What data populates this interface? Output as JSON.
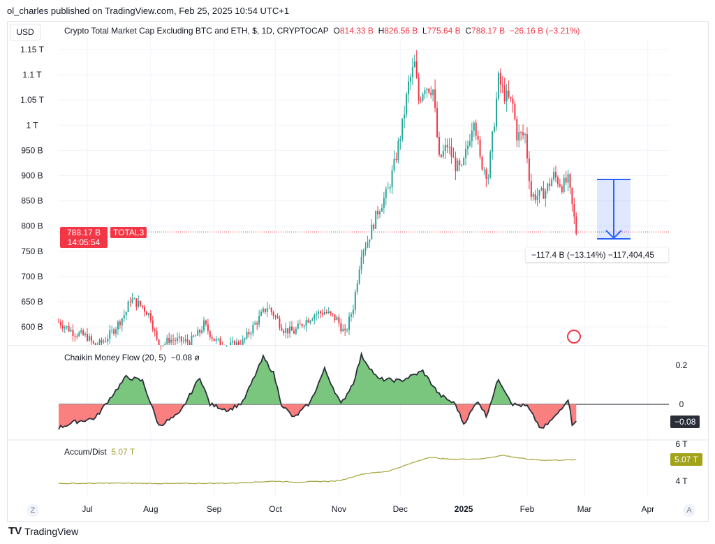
{
  "publisher": "ol_charles published on TradingView.com, Feb 25, 2025 10:54 UTC+1",
  "currency": "USD",
  "symbol_title": "Crypto Total Market Cap Excluding BTC and ETH, $, 1D, CRYPTOCAP",
  "ohlc": {
    "o_label": "O",
    "o": "814.33 B",
    "h_label": "H",
    "h": "826.56 B",
    "l_label": "L",
    "l": "775.64 B",
    "c_label": "C",
    "c": "788.17 B",
    "change": "−26.16 B (−3.21%)"
  },
  "price_tag": {
    "value": "788.17 B",
    "countdown": "14:05:54",
    "ticker": "TOTAL3"
  },
  "measure_label": "−117.4 B (−13.14%) −117,404,45",
  "cmf": {
    "title": "Chaikin Money Flow (20, 5)",
    "value": "−0.08",
    "icon": "eye-off-icon",
    "ticks": [
      "0.2",
      "0"
    ],
    "tag": "−0.08"
  },
  "ad": {
    "title": "Accum/Dist",
    "value": "5.07 T",
    "ticks": [
      "6 T",
      "4 T"
    ],
    "tag": "5.07 T"
  },
  "x_ticks": [
    "Jul",
    "Aug",
    "Sep",
    "Oct",
    "Nov",
    "Dec",
    "2025",
    "Feb",
    "Mar",
    "Apr"
  ],
  "brand": "TradingView",
  "colors": {
    "up": "#26a69a",
    "down": "#f23645",
    "cmf_pos": "#7bc67e",
    "cmf_neg": "#fa8080",
    "ad_line": "#a3a33a",
    "measure": "#2962ff"
  },
  "chart_data": {
    "type": "candlestick",
    "y_ticks": [
      "1.15 T",
      "1.1 T",
      "1.05 T",
      "1 T",
      "950 B",
      "900 B",
      "850 B",
      "800 B",
      "750 B",
      "700 B",
      "650 B",
      "600 B"
    ],
    "ylim_billions": [
      560,
      1160
    ],
    "price_close_billions": [
      [
        "2024-06-17",
        610
      ],
      [
        "2024-06-24",
        590
      ],
      [
        "2024-07-01",
        580
      ],
      [
        "2024-07-05",
        560
      ],
      [
        "2024-07-10",
        575
      ],
      [
        "2024-07-15",
        600
      ],
      [
        "2024-07-20",
        630
      ],
      [
        "2024-07-22",
        655
      ],
      [
        "2024-07-28",
        640
      ],
      [
        "2024-08-01",
        620
      ],
      [
        "2024-08-05",
        555
      ],
      [
        "2024-08-10",
        575
      ],
      [
        "2024-08-20",
        570
      ],
      [
        "2024-08-25",
        590
      ],
      [
        "2024-08-27",
        605
      ],
      [
        "2024-09-01",
        575
      ],
      [
        "2024-09-07",
        560
      ],
      [
        "2024-09-15",
        570
      ],
      [
        "2024-09-20",
        600
      ],
      [
        "2024-09-27",
        640
      ],
      [
        "2024-10-01",
        620
      ],
      [
        "2024-10-05",
        595
      ],
      [
        "2024-10-10",
        590
      ],
      [
        "2024-10-15",
        610
      ],
      [
        "2024-10-20",
        625
      ],
      [
        "2024-10-25",
        630
      ],
      [
        "2024-10-31",
        615
      ],
      [
        "2024-11-04",
        585
      ],
      [
        "2024-11-08",
        640
      ],
      [
        "2024-11-12",
        750
      ],
      [
        "2024-11-15",
        770
      ],
      [
        "2024-11-20",
        830
      ],
      [
        "2024-11-25",
        870
      ],
      [
        "2024-11-28",
        920
      ],
      [
        "2024-12-02",
        1000
      ],
      [
        "2024-12-05",
        1080
      ],
      [
        "2024-12-08",
        1120
      ],
      [
        "2024-12-10",
        1050
      ],
      [
        "2024-12-13",
        1080
      ],
      [
        "2024-12-17",
        1070
      ],
      [
        "2024-12-20",
        930
      ],
      [
        "2024-12-24",
        960
      ],
      [
        "2024-12-28",
        920
      ],
      [
        "2024-12-31",
        910
      ],
      [
        "2025-01-03",
        960
      ],
      [
        "2025-01-06",
        1020
      ],
      [
        "2025-01-09",
        930
      ],
      [
        "2025-01-13",
        900
      ],
      [
        "2025-01-16",
        1010
      ],
      [
        "2025-01-18",
        1090
      ],
      [
        "2025-01-21",
        1060
      ],
      [
        "2025-01-25",
        1040
      ],
      [
        "2025-01-27",
        980
      ],
      [
        "2025-01-31",
        980
      ],
      [
        "2025-02-03",
        860
      ],
      [
        "2025-02-07",
        860
      ],
      [
        "2025-02-10",
        870
      ],
      [
        "2025-02-14",
        900
      ],
      [
        "2025-02-18",
        880
      ],
      [
        "2025-02-21",
        890
      ],
      [
        "2025-02-24",
        814
      ],
      [
        "2025-02-25",
        788
      ]
    ],
    "cmf_values": [
      [
        "2024-06-17",
        -0.12
      ],
      [
        "2024-06-25",
        -0.09
      ],
      [
        "2024-07-05",
        -0.07
      ],
      [
        "2024-07-12",
        0.03
      ],
      [
        "2024-07-20",
        0.14
      ],
      [
        "2024-07-28",
        0.12
      ],
      [
        "2024-08-05",
        -0.11
      ],
      [
        "2024-08-15",
        -0.05
      ],
      [
        "2024-08-25",
        0.14
      ],
      [
        "2024-08-30",
        0.0
      ],
      [
        "2024-09-08",
        -0.03
      ],
      [
        "2024-09-15",
        0.01
      ],
      [
        "2024-09-25",
        0.24
      ],
      [
        "2024-09-30",
        0.16
      ],
      [
        "2024-10-04",
        0.0
      ],
      [
        "2024-10-10",
        -0.07
      ],
      [
        "2024-10-18",
        0.01
      ],
      [
        "2024-10-25",
        0.18
      ],
      [
        "2024-11-02",
        0.0
      ],
      [
        "2024-11-08",
        0.11
      ],
      [
        "2024-11-12",
        0.25
      ],
      [
        "2024-11-20",
        0.13
      ],
      [
        "2024-12-01",
        0.12
      ],
      [
        "2024-12-12",
        0.17
      ],
      [
        "2024-12-20",
        0.05
      ],
      [
        "2024-12-28",
        0.0
      ],
      [
        "2025-01-01",
        -0.1
      ],
      [
        "2025-01-08",
        0.02
      ],
      [
        "2025-01-12",
        -0.06
      ],
      [
        "2025-01-18",
        0.13
      ],
      [
        "2025-01-25",
        0.0
      ],
      [
        "2025-02-01",
        -0.01
      ],
      [
        "2025-02-08",
        -0.13
      ],
      [
        "2025-02-15",
        -0.06
      ],
      [
        "2025-02-21",
        0.03
      ],
      [
        "2025-02-23",
        -0.1
      ],
      [
        "2025-02-25",
        -0.08
      ]
    ],
    "ad_values_trillions": [
      [
        "2024-06-17",
        3.88
      ],
      [
        "2024-07-15",
        3.9
      ],
      [
        "2024-08-10",
        3.88
      ],
      [
        "2024-09-10",
        3.9
      ],
      [
        "2024-10-01",
        4.0
      ],
      [
        "2024-10-10",
        3.95
      ],
      [
        "2024-11-01",
        4.01
      ],
      [
        "2024-11-12",
        4.35
      ],
      [
        "2024-11-25",
        4.5
      ],
      [
        "2024-12-05",
        4.85
      ],
      [
        "2024-12-15",
        5.2
      ],
      [
        "2024-12-25",
        5.1
      ],
      [
        "2025-01-10",
        5.12
      ],
      [
        "2025-01-20",
        5.3
      ],
      [
        "2025-02-01",
        5.1
      ],
      [
        "2025-02-10",
        5.05
      ],
      [
        "2025-02-25",
        5.07
      ]
    ]
  }
}
